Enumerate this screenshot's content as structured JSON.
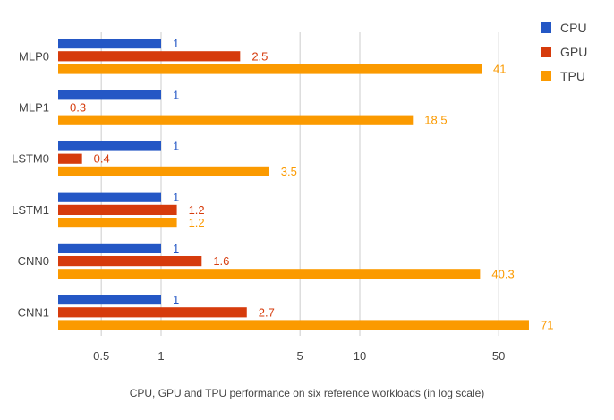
{
  "chart_data": {
    "type": "bar",
    "orientation": "horizontal",
    "scale": "log",
    "categories": [
      "MLP0",
      "MLP1",
      "LSTM0",
      "LSTM1",
      "CNN0",
      "CNN1"
    ],
    "series": [
      {
        "name": "CPU",
        "color": "#2457c5",
        "values": [
          1,
          1,
          1,
          1,
          1,
          1
        ],
        "labels": [
          "1",
          "1",
          "1",
          "1",
          "1",
          "1"
        ]
      },
      {
        "name": "GPU",
        "color": "#d63b0c",
        "values": [
          2.5,
          0.3,
          0.4,
          1.2,
          1.6,
          2.7
        ],
        "labels": [
          "2.5",
          "0.3",
          "0.4",
          "1.2",
          "1.6",
          "2.7"
        ]
      },
      {
        "name": "TPU",
        "color": "#fb9a00",
        "values": [
          41,
          18.5,
          3.5,
          1.2,
          40.3,
          71
        ],
        "labels": [
          "41",
          "18.5",
          "3.5",
          "1.2",
          "40.3",
          "71"
        ]
      }
    ],
    "xticks": [
      0.5,
      1,
      5,
      10,
      50
    ],
    "xtick_labels": [
      "0.5",
      "1",
      "5",
      "10",
      "50"
    ],
    "grid": true,
    "legend_position": "top-right",
    "xlabel": "CPU, GPU and TPU performance on six reference workloads (in log scale)"
  }
}
